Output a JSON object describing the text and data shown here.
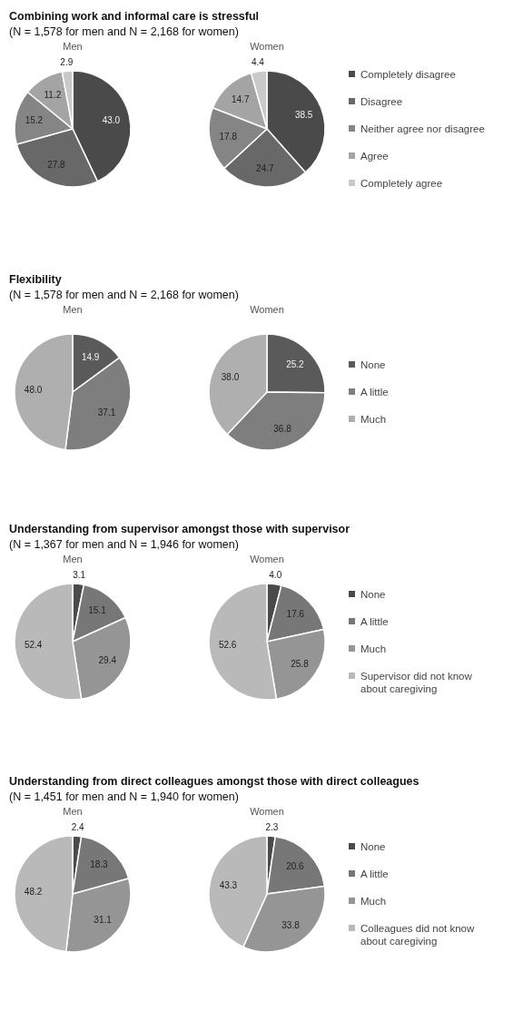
{
  "chart_data": [
    {
      "type": "pie",
      "title": "Combining work and informal care is stressful",
      "subtitle": "(N = 1,578 for men and N = 2,168 for women)",
      "categories": [
        "Completely disagree",
        "Disagree",
        "Neither agree nor disagree",
        "Agree",
        "Completely agree"
      ],
      "colors": [
        "#4a4a4a",
        "#686868",
        "#858585",
        "#a4a4a4",
        "#c9c9c9"
      ],
      "legend": "right",
      "series": [
        {
          "name": "Men",
          "values": [
            43.0,
            27.8,
            15.2,
            11.2,
            2.9
          ],
          "value_labels": [
            "43.0",
            "27.8",
            "15.2",
            "11.2",
            "2.9"
          ]
        },
        {
          "name": "Women",
          "values": [
            38.5,
            24.7,
            17.8,
            14.7,
            4.4
          ],
          "value_labels": [
            "38.5",
            "24.7",
            "17.8",
            "14.7",
            "4.4"
          ]
        }
      ]
    },
    {
      "type": "pie",
      "title": "Flexibility",
      "subtitle": "(N = 1,578 for men and N = 2,168 for women)",
      "categories": [
        "None",
        "A little",
        "Much"
      ],
      "colors": [
        "#5a5a5a",
        "#7e7e7e",
        "#afafaf"
      ],
      "legend": "right",
      "series": [
        {
          "name": "Men",
          "values": [
            14.9,
            37.1,
            48.0
          ],
          "value_labels": [
            "14.9",
            "37.1",
            "48.0"
          ]
        },
        {
          "name": "Women",
          "values": [
            25.2,
            36.8,
            38.0
          ],
          "value_labels": [
            "25.2",
            "36.8",
            "38.0"
          ]
        }
      ]
    },
    {
      "type": "pie",
      "title": "Understanding from supervisor amongst those with supervisor",
      "subtitle": "(N = 1,367 for men and N = 1,946 for women)",
      "categories": [
        "None",
        "A little",
        "Much",
        "Supervisor did not know about caregiving"
      ],
      "colors": [
        "#4a4a4a",
        "#777777",
        "#959595",
        "#b9b9b9"
      ],
      "legend": "right",
      "series": [
        {
          "name": "Men",
          "values": [
            3.1,
            15.1,
            29.4,
            52.4
          ],
          "value_labels": [
            "3.1",
            "15.1",
            "29.4",
            "52.4"
          ]
        },
        {
          "name": "Women",
          "values": [
            4.0,
            17.6,
            25.8,
            52.6
          ],
          "value_labels": [
            "4.0",
            "17.6",
            "25.8",
            "52.6"
          ]
        }
      ]
    },
    {
      "type": "pie",
      "title": "Understanding from direct colleagues amongst those with direct colleagues",
      "subtitle": "(N = 1,451 for men and N = 1,940 for women)",
      "categories": [
        "None",
        "A little",
        "Much",
        "Colleagues did not know about caregiving"
      ],
      "colors": [
        "#4a4a4a",
        "#777777",
        "#959595",
        "#b9b9b9"
      ],
      "legend": "right",
      "series": [
        {
          "name": "Men",
          "values": [
            2.4,
            18.3,
            31.1,
            48.2
          ],
          "value_labels": [
            "2.4",
            "18.3",
            "31.1",
            "48.2"
          ]
        },
        {
          "name": "Women",
          "values": [
            2.3,
            20.6,
            33.8,
            43.3
          ],
          "value_labels": [
            "2.3",
            "20.6",
            "33.8",
            "43.3"
          ]
        }
      ]
    }
  ]
}
